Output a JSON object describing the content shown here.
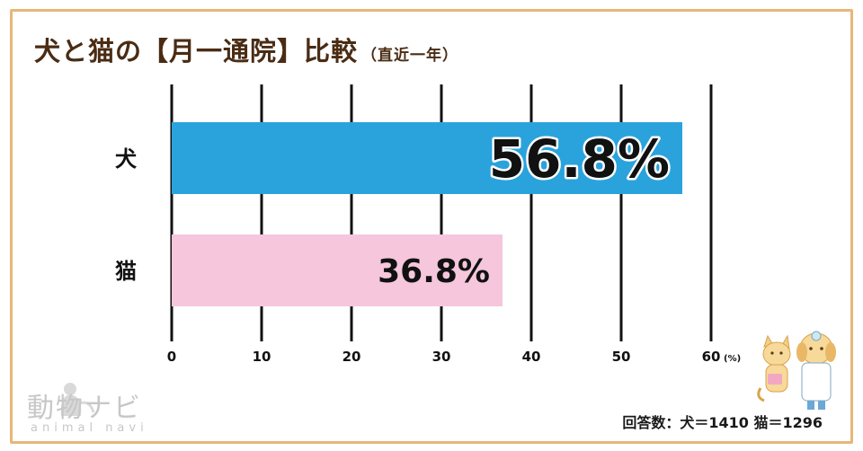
{
  "chart_data": {
    "type": "bar",
    "orientation": "horizontal",
    "title": "犬と猫の【月一通院】比較",
    "subtitle": "（直近一年）",
    "categories": [
      "犬",
      "猫"
    ],
    "values": [
      56.8,
      36.8
    ],
    "value_labels": [
      "56.8%",
      "36.8%"
    ],
    "colors": [
      "#2aa3dd",
      "#f5c6dc"
    ],
    "x_ticks": [
      "0",
      "10",
      "20",
      "30",
      "40",
      "50",
      "60"
    ],
    "x_unit": "(%)",
    "xlim": [
      0,
      60
    ],
    "grid": true
  },
  "footnote": "回答数：犬＝1410 猫＝1296",
  "logo": {
    "main": "動物ナビ",
    "sub": "animal navi"
  },
  "colors": {
    "frame": "#e8b777",
    "title": "#4a2c14"
  },
  "icons": [
    "pet-silhouette-icon",
    "cat-mascot-icon",
    "dog-doctor-mascot-icon"
  ]
}
